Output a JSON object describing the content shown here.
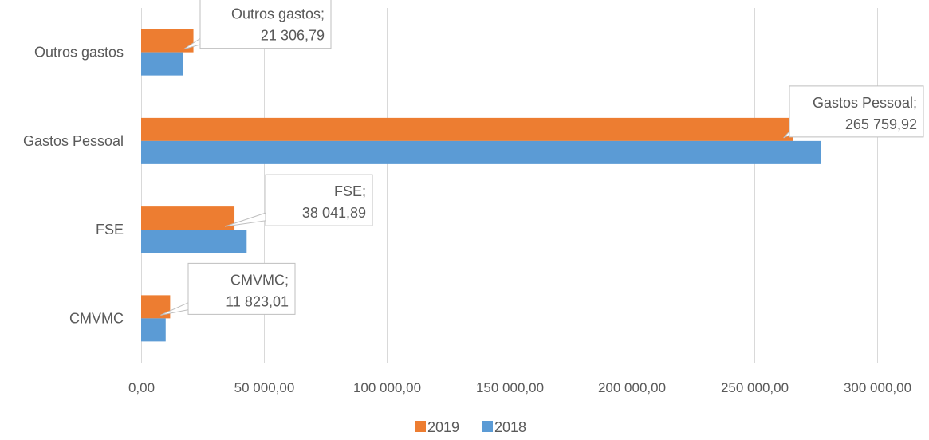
{
  "chart_data": {
    "type": "bar",
    "orientation": "horizontal",
    "categories": [
      "Outros gastos",
      "Gastos Pessoal",
      "FSE",
      "CMVMC"
    ],
    "series": [
      {
        "name": "2019",
        "color": "#ED7D31",
        "values": [
          21306.79,
          265759.92,
          38041.89,
          11823.01
        ]
      },
      {
        "name": "2018",
        "color": "#5B9BD5",
        "values": [
          17000,
          277000,
          43000,
          10000
        ]
      }
    ],
    "xlim": [
      0,
      300000
    ],
    "x_ticks": [
      0,
      50000,
      100000,
      150000,
      200000,
      250000,
      300000
    ],
    "x_tick_labels": [
      "0,00",
      "50 000,00",
      "100 000,00",
      "150 000,00",
      "200 000,00",
      "250 000,00",
      "300 000,00"
    ],
    "grid": "vertical",
    "legend_position": "bottom",
    "data_labels": [
      {
        "series": "2019",
        "category": "Outros gastos",
        "line1": "Outros gastos;",
        "line2": "21 306,79"
      },
      {
        "series": "2019",
        "category": "Gastos Pessoal",
        "line1": "Gastos Pessoal;",
        "line2": "265 759,92"
      },
      {
        "series": "2019",
        "category": "FSE",
        "line1": "FSE;",
        "line2": "38 041,89"
      },
      {
        "series": "2019",
        "category": "CMVMC",
        "line1": "CMVMC;",
        "line2": "11 823,01"
      }
    ]
  }
}
